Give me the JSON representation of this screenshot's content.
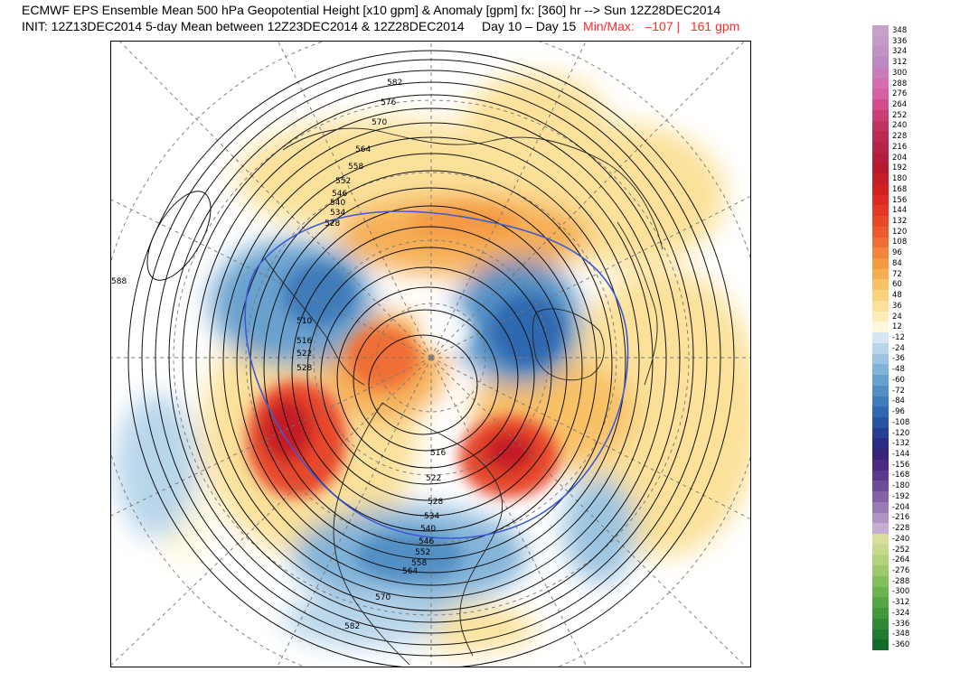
{
  "header": {
    "line1": "ECMWF EPS Ensemble Mean 500 hPa Geopotential Height [x10 gpm] & Anomaly [gpm] fx: [360] hr --> Sun 12Z28DEC2014",
    "line2_init": "INIT: 12Z13DEC2014 5-day Mean between 12Z23DEC2014 & 12Z28DEC2014     Day 10 – Day 15",
    "line2_minmax": "Min/Max:   –107 |   161 gpm"
  },
  "map": {
    "projection": "north-polar-stereographic",
    "contour_labels": [
      "582",
      "576",
      "570",
      "564",
      "558",
      "552",
      "546",
      "540",
      "534",
      "528",
      "510",
      "516",
      "522",
      "528",
      "588",
      "516",
      "522",
      "528",
      "534",
      "540",
      "546",
      "552",
      "558",
      "564",
      "570",
      "582"
    ],
    "anomaly_features": [
      {
        "region": "western-north-america",
        "sign": "positive",
        "color": "#e0241c"
      },
      {
        "region": "north-atlantic-greenland",
        "sign": "positive",
        "color": "#e0241c"
      },
      {
        "region": "siberia",
        "sign": "negative",
        "color": "#2c6cb8"
      },
      {
        "region": "eastern-asia-pacific",
        "sign": "negative",
        "color": "#2c6cb8"
      },
      {
        "region": "eastern-north-america",
        "sign": "negative",
        "color": "#2c6cb8"
      },
      {
        "region": "central-asia-europe",
        "sign": "positive",
        "color": "#f4a14c"
      }
    ]
  },
  "colorbar": {
    "labels": [
      "348",
      "336",
      "324",
      "312",
      "300",
      "288",
      "276",
      "264",
      "252",
      "240",
      "228",
      "216",
      "204",
      "192",
      "180",
      "168",
      "156",
      "144",
      "132",
      "120",
      "108",
      "96",
      "84",
      "72",
      "60",
      "48",
      "36",
      "24",
      "12",
      "-12",
      "-24",
      "-36",
      "-48",
      "-60",
      "-72",
      "-84",
      "-96",
      "-108",
      "-120",
      "-132",
      "-144",
      "-156",
      "-168",
      "-180",
      "-192",
      "-204",
      "-216",
      "-228",
      "-240",
      "-252",
      "-264",
      "-276",
      "-288",
      "-300",
      "-312",
      "-324",
      "-336",
      "-348",
      "-360"
    ],
    "colors": [
      "#c7a0c8",
      "#c49ac6",
      "#c192c4",
      "#bc89c2",
      "#c97dbb",
      "#d56db0",
      "#d95fa4",
      "#d24d8c",
      "#c93e74",
      "#c0335f",
      "#bb2a52",
      "#b6234b",
      "#b51d3c",
      "#b8182b",
      "#c41e26",
      "#d2201f",
      "#de2a24",
      "#e33827",
      "#e8472a",
      "#ec5b2f",
      "#ef6e35",
      "#f2843c",
      "#f49a45",
      "#f6ae54",
      "#f8c166",
      "#f9d27e",
      "#fbe19a",
      "#fcedbb",
      "#fef8dc",
      "#d5e6f2",
      "#b8d5ea",
      "#9cc4e1",
      "#82b3d8",
      "#69a1ce",
      "#528fc4",
      "#3f7cba",
      "#2f68b0",
      "#2854a3",
      "#283f95",
      "#2a2d87",
      "#382479",
      "#4a2a82",
      "#5a3a8c",
      "#6d4d97",
      "#8363a5",
      "#9a7ab3",
      "#b093c2",
      "#c5aed2",
      "#d8dc9c",
      "#c6d98c",
      "#b2d27c",
      "#9cc96c",
      "#84bf5d",
      "#6cb350",
      "#56a645",
      "#43983c",
      "#318935",
      "#217a30",
      "#136a2b"
    ]
  }
}
